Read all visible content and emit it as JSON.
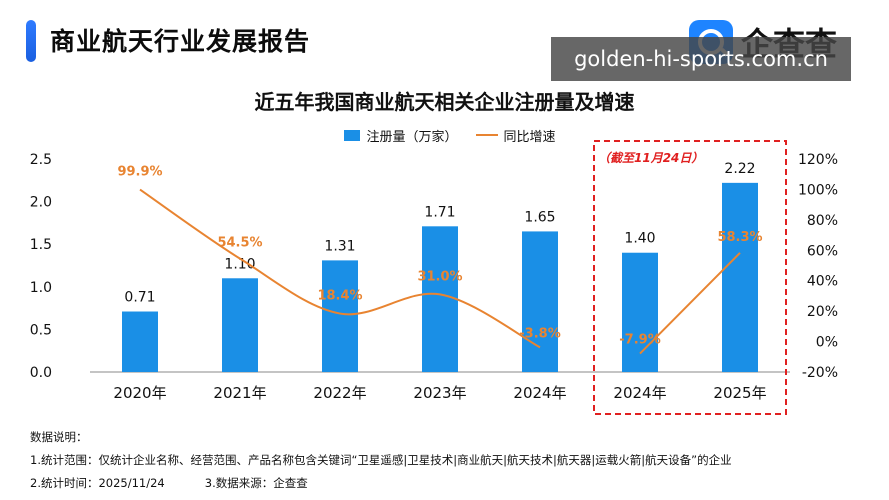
{
  "header": {
    "title": "商业航天行业发展报告",
    "logo_text": "企查查",
    "watermark": "golden-hi-sports.com.cn"
  },
  "chart_data": {
    "type": "bar",
    "title": "近五年我国商业航天相关企业注册量及增速",
    "categories": [
      "2020年",
      "2021年",
      "2022年",
      "2023年",
      "2024年",
      "2024年",
      "2025年"
    ],
    "series": [
      {
        "name": "注册量（万家）",
        "type": "bar",
        "axis": "left",
        "values": [
          0.71,
          1.1,
          1.31,
          1.71,
          1.65,
          1.4,
          2.22
        ],
        "labels": [
          "0.71",
          "1.10",
          "1.31",
          "1.71",
          "1.65",
          "1.40",
          "2.22"
        ],
        "color": "#1a8fe6"
      },
      {
        "name": "同比增速",
        "type": "line",
        "axis": "right",
        "values": [
          99.9,
          54.5,
          18.4,
          31.0,
          -3.8,
          -7.9,
          58.3
        ],
        "labels": [
          "99.9%",
          "54.5%",
          "18.4%",
          "31.0%",
          "-3.8%",
          "-7.9%",
          "58.3%"
        ],
        "color": "#e88431"
      }
    ],
    "ylim_left": [
      0,
      2.5
    ],
    "yticks_left": [
      "0.0",
      "0.5",
      "1.0",
      "1.5",
      "2.0",
      "2.5"
    ],
    "ylim_right": [
      -20,
      120
    ],
    "yticks_right": [
      "-20%",
      "0%",
      "20%",
      "40%",
      "60%",
      "80%",
      "100%",
      "120%"
    ],
    "legend_position": "top-center",
    "grid": false,
    "highlight_note": "（截至11月24日）",
    "highlight_color": "#e02020"
  },
  "notes": {
    "heading": "数据说明：",
    "line1": "1.统计范围：仅统计企业名称、经营范围、产品名称包含关键词“卫星遥感|卫星技术|商业航天|航天技术|航天器|运载火箭|航天设备”的企业",
    "line2a": "2.统计时间：2025/11/24",
    "line2b": "3.数据来源：企查查"
  }
}
